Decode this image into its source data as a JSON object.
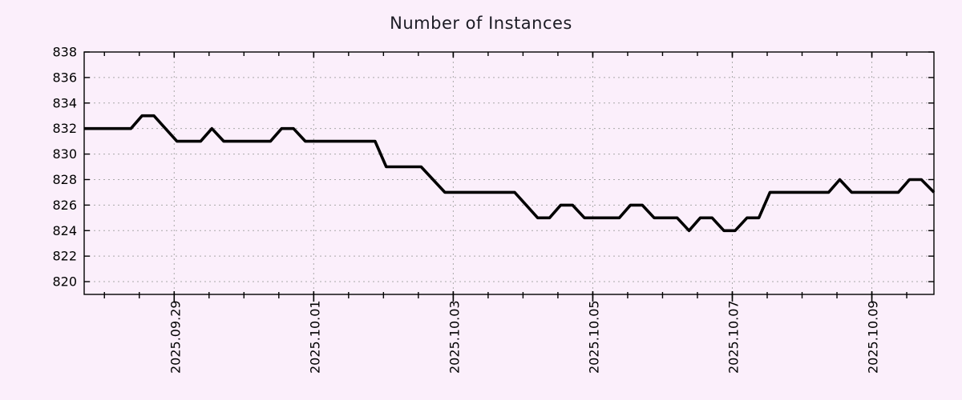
{
  "title": "Number of Instances",
  "colors": {
    "background": "#fbeffb",
    "line": "#000000",
    "grid": "#a9a9a9",
    "axis": "#000000",
    "title_text": "#1b1b24",
    "tick_text": "#000000"
  },
  "chart_data": {
    "type": "line",
    "title": "Number of Instances",
    "xlabel": "",
    "ylabel": "",
    "ylim": [
      819,
      838
    ],
    "y_ticks": [
      820,
      822,
      824,
      826,
      828,
      830,
      832,
      834,
      836,
      838
    ],
    "x_range_days": [
      0,
      12.18
    ],
    "x_tick_days": [
      1.29,
      3.29,
      5.29,
      7.29,
      9.29,
      11.29
    ],
    "x_tick_labels": [
      "2025.09.29",
      "2025.10.01",
      "2025.10.03",
      "2025.10.05",
      "2025.10.07",
      "2025.10.09"
    ],
    "minor_tick_start_day": 0.29,
    "minor_tick_interval_days": 0.5,
    "grid": true,
    "legend": false,
    "series": [
      {
        "name": "instances",
        "points": [
          [
            0.0,
            832
          ],
          [
            0.67,
            832
          ],
          [
            0.83,
            833
          ],
          [
            1.0,
            833
          ],
          [
            1.33,
            831
          ],
          [
            1.67,
            831
          ],
          [
            1.83,
            832
          ],
          [
            2.0,
            831
          ],
          [
            2.67,
            831
          ],
          [
            2.83,
            832
          ],
          [
            3.0,
            832
          ],
          [
            3.17,
            831
          ],
          [
            4.17,
            831
          ],
          [
            4.33,
            829
          ],
          [
            4.83,
            829
          ],
          [
            5.17,
            827
          ],
          [
            6.17,
            827
          ],
          [
            6.5,
            825
          ],
          [
            6.67,
            825
          ],
          [
            6.83,
            826
          ],
          [
            7.0,
            826
          ],
          [
            7.17,
            825
          ],
          [
            7.67,
            825
          ],
          [
            7.83,
            826
          ],
          [
            8.0,
            826
          ],
          [
            8.17,
            825
          ],
          [
            8.5,
            825
          ],
          [
            8.67,
            824
          ],
          [
            8.83,
            825
          ],
          [
            9.0,
            825
          ],
          [
            9.17,
            824
          ],
          [
            9.33,
            824
          ],
          [
            9.5,
            825
          ],
          [
            9.67,
            825
          ],
          [
            9.83,
            827
          ],
          [
            10.67,
            827
          ],
          [
            10.83,
            828
          ],
          [
            11.0,
            827
          ],
          [
            11.67,
            827
          ],
          [
            11.83,
            828
          ],
          [
            12.0,
            828
          ],
          [
            12.18,
            827
          ]
        ]
      }
    ]
  }
}
